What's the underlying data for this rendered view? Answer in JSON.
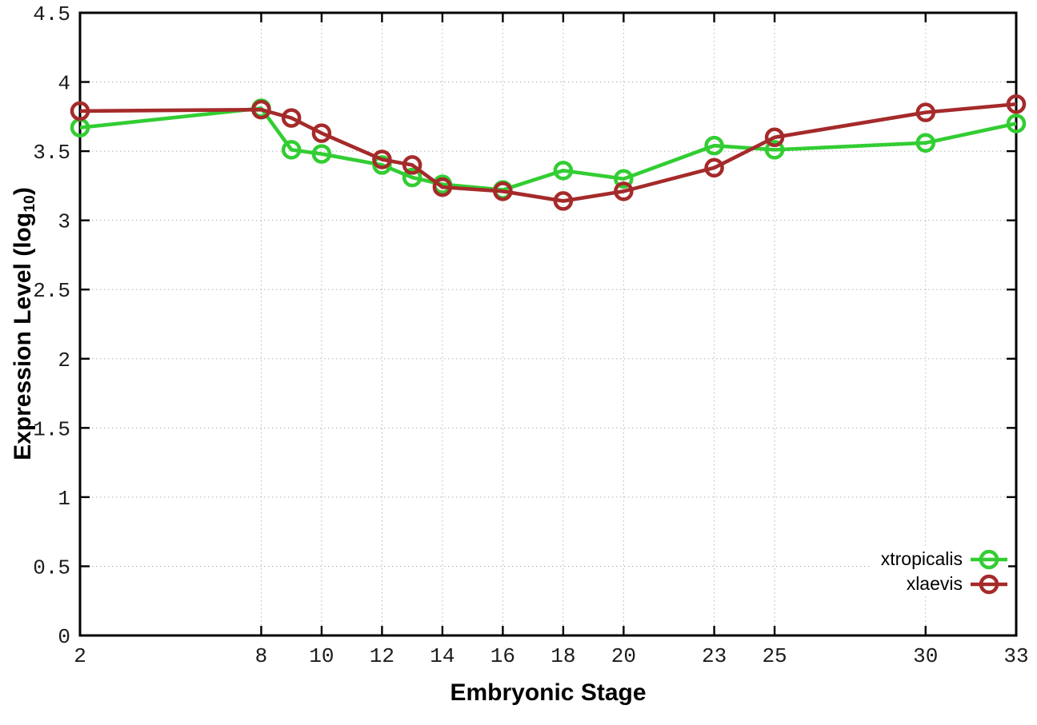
{
  "chart_data": {
    "type": "line",
    "title": "",
    "xlabel": "Embryonic Stage",
    "ylabel": "Expression Level (log10)",
    "ylabel_rich": {
      "prefix": "Expression Level (log",
      "subscript": "10",
      "suffix": ")"
    },
    "x": [
      2,
      8,
      9,
      10,
      12,
      13,
      14,
      16,
      18,
      20,
      23,
      25,
      30,
      33
    ],
    "series": [
      {
        "name": "xtropicalis",
        "color": "#32CD32",
        "values": [
          3.67,
          3.81,
          3.51,
          3.48,
          3.4,
          3.31,
          3.26,
          3.22,
          3.36,
          3.3,
          3.54,
          3.51,
          3.56,
          3.7
        ]
      },
      {
        "name": "xlaevis",
        "color": "#A52A2A",
        "values": [
          3.79,
          3.8,
          3.74,
          3.63,
          3.44,
          3.4,
          3.24,
          3.21,
          3.14,
          3.21,
          3.38,
          3.6,
          3.78,
          3.84
        ]
      }
    ],
    "x_tick_labels": [
      "2",
      "8",
      "10",
      "12",
      "14",
      "16",
      "18",
      "20",
      "23",
      "25",
      "30",
      "33"
    ],
    "x_tick_values": [
      2,
      8,
      10,
      12,
      14,
      16,
      18,
      20,
      23,
      25,
      30,
      33
    ],
    "y_tick_labels": [
      "0",
      "0.5",
      "1",
      "1.5",
      "2",
      "2.5",
      "3",
      "3.5",
      "4",
      "4.5"
    ],
    "y_tick_values": [
      0,
      0.5,
      1,
      1.5,
      2,
      2.5,
      3,
      3.5,
      4,
      4.5
    ],
    "xlim": [
      2,
      33
    ],
    "ylim": [
      0,
      4.5
    ],
    "grid": true,
    "marker": "open-circle",
    "legend_position": "inside-bottom-right"
  },
  "colors": {
    "xtropicalis_green": "#32CD32",
    "xlaevis_red": "#A52A2A",
    "axis": "#000000",
    "gridline": "#b4b4b4",
    "tick_text": "#1c1c1c",
    "background": "#ffffff"
  }
}
